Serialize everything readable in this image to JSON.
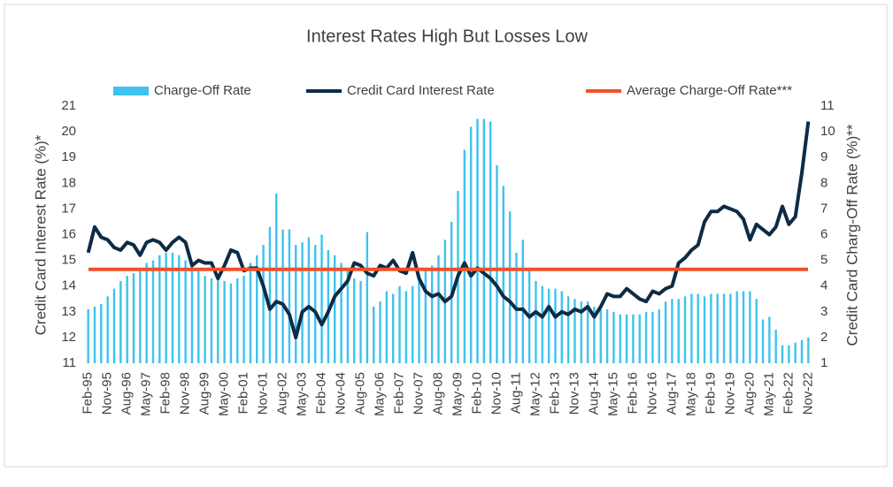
{
  "chart_data": {
    "type": "bar-line",
    "title": "Interest Rates High But Losses Low",
    "y_label": "Credit  Card Interest Rate (%)*",
    "y2_label": "Credit Card Charg-Off Rate (%)**",
    "categories": [
      "Feb-95",
      null,
      null,
      "Nov-95",
      null,
      null,
      "Aug-96",
      null,
      null,
      "May-97",
      null,
      null,
      "Feb-98",
      null,
      null,
      "Nov-98",
      null,
      null,
      "Aug-99",
      null,
      null,
      "May-00",
      null,
      null,
      "Feb-01",
      null,
      null,
      "Nov-01",
      null,
      null,
      "Aug-02",
      null,
      null,
      "May-03",
      null,
      null,
      "Feb-04",
      null,
      null,
      "Nov-04",
      null,
      null,
      "Aug-05",
      null,
      null,
      "May-06",
      null,
      null,
      "Feb-07",
      null,
      null,
      "Nov-07",
      null,
      null,
      "Aug-08",
      null,
      null,
      "May-09",
      null,
      null,
      "Feb-10",
      null,
      null,
      "Nov-10",
      null,
      null,
      "Aug-11",
      null,
      null,
      "May-12",
      null,
      null,
      "Feb-13",
      null,
      null,
      "Nov-13",
      null,
      null,
      "Aug-14",
      null,
      null,
      "May-15",
      null,
      null,
      "Feb-16",
      null,
      null,
      "Nov-16",
      null,
      null,
      "Aug-17",
      null,
      null,
      "May-18",
      null,
      null,
      "Feb-19",
      null,
      null,
      "Nov-19",
      null,
      null,
      "Aug-20",
      null,
      null,
      "May-21",
      null,
      null,
      "Feb-22",
      null,
      null,
      "Nov-22"
    ],
    "series": [
      {
        "name": "Charge-Off Rate",
        "type": "bar",
        "axis": "y2",
        "color": "#3ec3ee",
        "values": [
          3.1,
          3.2,
          3.3,
          3.6,
          3.9,
          4.2,
          4.4,
          4.5,
          4.6,
          4.9,
          5.0,
          5.2,
          5.3,
          5.3,
          5.2,
          5.0,
          4.9,
          4.6,
          4.4,
          4.3,
          4.3,
          4.2,
          4.1,
          4.3,
          4.4,
          4.9,
          5.2,
          5.6,
          6.3,
          7.6,
          6.2,
          6.2,
          5.6,
          5.7,
          5.9,
          5.6,
          6.0,
          5.4,
          5.2,
          4.9,
          4.6,
          4.3,
          4.2,
          6.1,
          3.2,
          3.4,
          3.8,
          3.7,
          4.0,
          3.8,
          4.0,
          4.3,
          4.6,
          4.8,
          5.2,
          5.8,
          6.5,
          7.7,
          9.3,
          10.2,
          10.5,
          10.5,
          10.4,
          8.7,
          7.9,
          6.9,
          5.3,
          5.8,
          4.6,
          4.2,
          4.0,
          3.9,
          3.9,
          3.8,
          3.6,
          3.5,
          3.4,
          3.4,
          3.2,
          3.1,
          3.1,
          3.0,
          2.9,
          2.9,
          2.9,
          2.9,
          3.0,
          3.0,
          3.1,
          3.4,
          3.5,
          3.5,
          3.6,
          3.7,
          3.7,
          3.6,
          3.7,
          3.7,
          3.7,
          3.7,
          3.8,
          3.8,
          3.8,
          3.5,
          2.7,
          2.8,
          2.3,
          1.7,
          1.7,
          1.8,
          1.9,
          2.0
        ]
      },
      {
        "name": "Credit Card Interest Rate",
        "type": "line",
        "axis": "y",
        "color": "#0d2b45",
        "values": [
          15.3,
          16.3,
          15.9,
          15.8,
          15.5,
          15.4,
          15.7,
          15.6,
          15.2,
          15.7,
          15.8,
          15.7,
          15.4,
          15.7,
          15.9,
          15.7,
          14.8,
          15.0,
          14.9,
          14.9,
          14.3,
          14.8,
          15.4,
          15.3,
          14.6,
          14.7,
          14.7,
          14.0,
          13.1,
          13.4,
          13.3,
          12.9,
          12.0,
          13.0,
          13.2,
          13.0,
          12.5,
          13.0,
          13.6,
          13.9,
          14.2,
          14.9,
          14.8,
          14.5,
          14.4,
          14.8,
          14.7,
          15.0,
          14.6,
          14.5,
          15.3,
          14.3,
          13.8,
          13.6,
          13.7,
          13.4,
          13.6,
          14.4,
          14.9,
          14.4,
          14.7,
          14.5,
          14.3,
          14.0,
          13.6,
          13.4,
          13.1,
          13.1,
          12.8,
          13.0,
          12.8,
          13.2,
          12.8,
          13.0,
          12.9,
          13.1,
          13.0,
          13.2,
          12.8,
          13.2,
          13.7,
          13.6,
          13.6,
          13.9,
          13.7,
          13.5,
          13.4,
          13.8,
          13.7,
          13.9,
          14.0,
          14.9,
          15.1,
          15.4,
          15.6,
          16.5,
          16.9,
          16.9,
          17.1,
          17.0,
          16.9,
          16.6,
          15.8,
          16.4,
          16.2,
          16.0,
          16.3,
          17.1,
          16.4,
          16.7,
          18.4,
          20.4
        ]
      },
      {
        "name": "Average Charge-Off Rate***",
        "type": "hline",
        "axis": "y2",
        "color": "#f0502a",
        "value": 4.65
      }
    ],
    "ylim": [
      11,
      21
    ],
    "yticks": [
      11,
      12,
      13,
      14,
      15,
      16,
      17,
      18,
      19,
      20,
      21
    ],
    "y2lim": [
      1,
      11
    ],
    "y2ticks": [
      1,
      2,
      3,
      4,
      5,
      6,
      7,
      8,
      9,
      10,
      11
    ]
  }
}
